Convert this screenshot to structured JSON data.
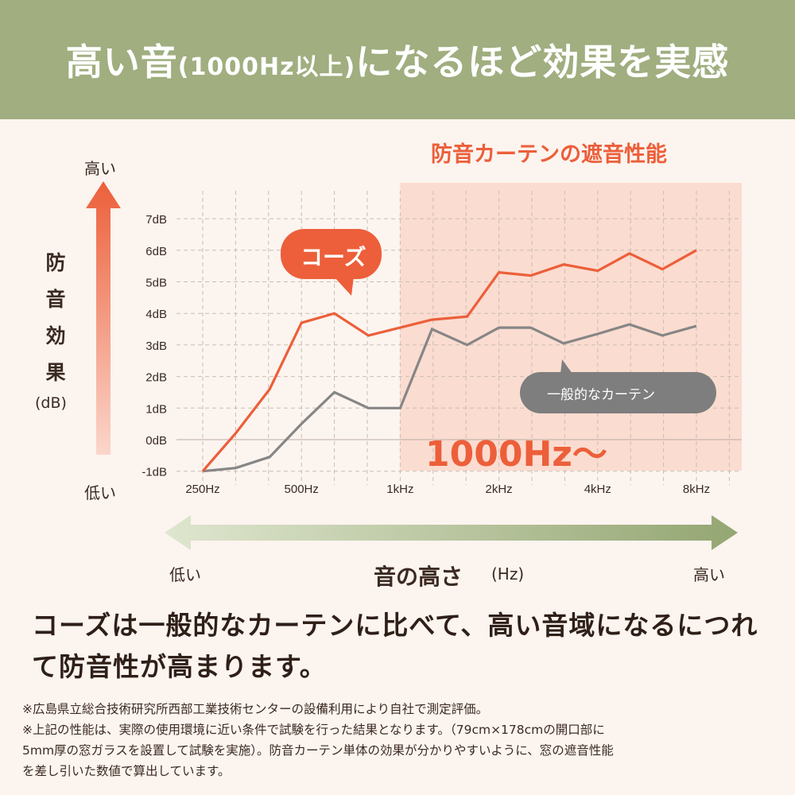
{
  "header": {
    "title_a": "高い音",
    "title_b": "(1000Hz以上)",
    "title_c": "になるほど効果を実感"
  },
  "colors": {
    "header_bg": "#a0ae80",
    "accent": "#ec5f3a",
    "grey_series": "#868686",
    "highlight_bg": "#fbdcd0",
    "axis_arrow": "#a0ae80"
  },
  "chart_data": {
    "type": "line",
    "title": "防音カーテンの遮音性能",
    "ylabel": "防音効果",
    "ylabel_unit": "(dB)",
    "y_high": "高い",
    "y_low": "低い",
    "xlabel": "音の高さ",
    "xlabel_unit": "(Hz)",
    "x_low": "低い",
    "x_high": "高い",
    "x": [
      250,
      315,
      400,
      500,
      630,
      800,
      1000,
      1250,
      1600,
      2000,
      2500,
      3150,
      4000,
      5000,
      6300,
      8000
    ],
    "x_tick_labels": [
      {
        "x": 250,
        "label": "250Hz"
      },
      {
        "x": 500,
        "label": "500Hz"
      },
      {
        "x": 1000,
        "label": "1kHz"
      },
      {
        "x": 2000,
        "label": "2kHz"
      },
      {
        "x": 4000,
        "label": "4kHz"
      },
      {
        "x": 8000,
        "label": "8kHz"
      }
    ],
    "x_scale": "log",
    "ylim": [
      -1,
      7
    ],
    "y_tick_labels": [
      "-1dB",
      "0dB",
      "1dB",
      "2dB",
      "3dB",
      "4dB",
      "5dB",
      "6dB",
      "7dB"
    ],
    "grid": true,
    "highlight_region": {
      "from": 1000,
      "label": "1000Hz〜"
    },
    "series": [
      {
        "name": "コーズ",
        "color": "#ec5f3a",
        "values": [
          -1.0,
          0.2,
          1.6,
          3.7,
          4.0,
          3.3,
          3.55,
          3.8,
          3.9,
          5.3,
          5.2,
          5.55,
          5.35,
          5.9,
          5.4,
          6.0
        ]
      },
      {
        "name": "一般的なカーテン",
        "color": "#868686",
        "values": [
          -1.0,
          -0.9,
          -0.55,
          0.5,
          1.5,
          1.0,
          1.0,
          3.5,
          3.0,
          3.55,
          3.55,
          3.05,
          3.35,
          3.65,
          3.3,
          3.6
        ]
      }
    ]
  },
  "summary": {
    "line1": "コーズは一般的なカーテンに比べて、高い音域になるにつれ",
    "line2": "て防音性が高まります。"
  },
  "notes": [
    "※広島県立総合技術研究所西部工業技術センターの設備利用により自社で測定評価。",
    "※上記の性能は、実際の使用環境に近い条件で試験を行った結果となります。（79cm×178cmの開口部に",
    "5mm厚の窓ガラスを設置して試験を実施）。防音カーテン単体の効果が分かりやすいように、窓の遮音性能",
    "を差し引いた数値で算出しています。"
  ]
}
